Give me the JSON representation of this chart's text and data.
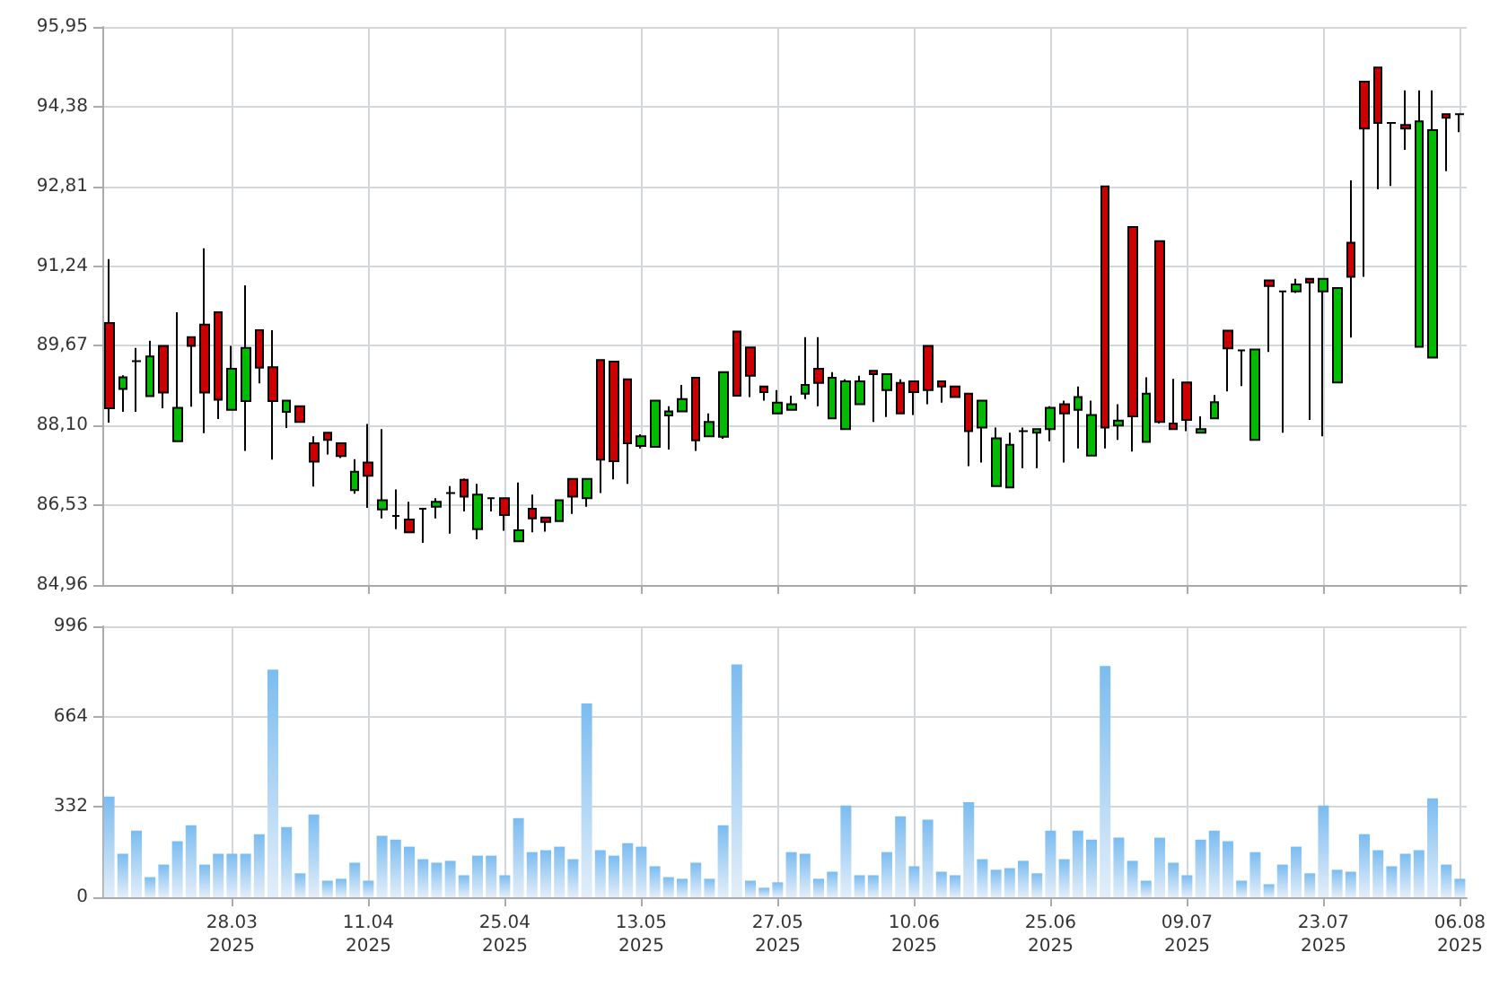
{
  "chart_data": [
    {
      "type": "candlestick",
      "categories": [
        null,
        null,
        null,
        null,
        null,
        null,
        null,
        null,
        null,
        null,
        null,
        null,
        null,
        null,
        null,
        null,
        null,
        null,
        null,
        null,
        null,
        null,
        null,
        null,
        null,
        null,
        null,
        null,
        null,
        null,
        null,
        null,
        null,
        null,
        null,
        null,
        null,
        null,
        null,
        null,
        null,
        null,
        null,
        null,
        null,
        null,
        null,
        null,
        null,
        null,
        null,
        null,
        null,
        null,
        null,
        null,
        null,
        null,
        null,
        null,
        null,
        null,
        null,
        null,
        null,
        null,
        null,
        null,
        null,
        null,
        null,
        null,
        null,
        null,
        null,
        null,
        null,
        null,
        null,
        null,
        null,
        null,
        null,
        null,
        null,
        null,
        null,
        null,
        null,
        null,
        null,
        null,
        null,
        null,
        null,
        null,
        null,
        null,
        null,
        null
      ],
      "ohlc": [
        [
          90.12,
          91.38,
          88.16,
          88.44
        ],
        [
          88.82,
          89.09,
          88.37,
          89.05
        ],
        [
          89.37,
          89.63,
          88.37,
          89.37
        ],
        [
          88.68,
          89.77,
          88.68,
          89.46
        ],
        [
          89.67,
          89.67,
          88.44,
          88.75
        ],
        [
          87.79,
          90.33,
          87.79,
          88.45
        ],
        [
          89.84,
          89.84,
          88.47,
          89.67
        ],
        [
          90.09,
          91.59,
          87.95,
          88.75
        ],
        [
          90.33,
          90.33,
          88.23,
          88.61
        ],
        [
          88.41,
          89.67,
          88.41,
          89.22
        ],
        [
          88.58,
          90.86,
          87.6,
          89.63
        ],
        [
          89.98,
          89.98,
          88.93,
          89.24
        ],
        [
          89.25,
          89.98,
          87.43,
          88.58
        ],
        [
          88.37,
          88.59,
          88.05,
          88.59
        ],
        [
          88.48,
          88.48,
          88.17,
          88.17
        ],
        [
          87.75,
          87.89,
          86.9,
          87.39
        ],
        [
          87.96,
          87.96,
          87.53,
          87.82
        ],
        [
          87.75,
          87.75,
          87.46,
          87.5
        ],
        [
          86.83,
          87.44,
          86.76,
          87.19
        ],
        [
          87.37,
          88.13,
          86.48,
          87.11
        ],
        [
          86.45,
          88.03,
          86.27,
          86.63
        ],
        [
          86.32,
          86.84,
          86.06,
          86.32
        ],
        [
          86.25,
          86.6,
          86.0,
          86.0
        ],
        [
          86.46,
          86.46,
          85.79,
          86.46
        ],
        [
          86.5,
          86.67,
          86.27,
          86.6
        ],
        [
          86.77,
          86.91,
          85.97,
          86.77
        ],
        [
          87.03,
          87.06,
          86.41,
          86.7
        ],
        [
          86.06,
          86.95,
          85.86,
          86.74
        ],
        [
          86.67,
          86.67,
          86.41,
          86.67
        ],
        [
          86.67,
          86.67,
          86.03,
          86.34
        ],
        [
          85.82,
          86.98,
          85.82,
          86.04
        ],
        [
          86.46,
          86.74,
          86.0,
          86.27
        ],
        [
          86.29,
          86.29,
          86.01,
          86.2
        ],
        [
          86.22,
          86.63,
          86.22,
          86.63
        ],
        [
          87.05,
          87.05,
          86.36,
          86.7
        ],
        [
          86.67,
          87.05,
          86.5,
          87.05
        ],
        [
          89.39,
          89.39,
          86.77,
          87.43
        ],
        [
          89.36,
          89.36,
          87.04,
          87.4
        ],
        [
          89.01,
          89.01,
          86.95,
          87.75
        ],
        [
          87.7,
          87.93,
          87.65,
          87.89
        ],
        [
          87.68,
          88.59,
          87.68,
          88.59
        ],
        [
          88.3,
          88.48,
          87.63,
          88.38
        ],
        [
          88.38,
          88.9,
          88.38,
          88.62
        ],
        [
          89.04,
          89.04,
          87.6,
          87.81
        ],
        [
          87.89,
          88.34,
          87.89,
          88.17
        ],
        [
          87.88,
          89.15,
          87.84,
          89.15
        ],
        [
          89.95,
          89.95,
          88.69,
          88.69
        ],
        [
          89.64,
          89.64,
          88.66,
          89.08
        ],
        [
          88.87,
          88.87,
          88.59,
          88.76
        ],
        [
          88.34,
          88.8,
          88.34,
          88.55
        ],
        [
          88.41,
          88.69,
          88.41,
          88.52
        ],
        [
          88.73,
          89.84,
          88.62,
          88.9
        ],
        [
          89.22,
          89.84,
          88.48,
          88.94
        ],
        [
          88.24,
          89.15,
          88.24,
          89.04
        ],
        [
          88.03,
          89.01,
          88.03,
          88.97
        ],
        [
          88.52,
          89.08,
          88.52,
          88.97
        ],
        [
          89.18,
          89.18,
          88.17,
          89.11
        ],
        [
          88.8,
          89.11,
          88.27,
          89.11
        ],
        [
          88.94,
          89.01,
          88.34,
          88.34
        ],
        [
          88.97,
          88.97,
          88.31,
          88.76
        ],
        [
          89.67,
          89.67,
          88.52,
          88.8
        ],
        [
          88.97,
          88.97,
          88.55,
          88.87
        ],
        [
          88.87,
          88.87,
          88.66,
          88.66
        ],
        [
          88.73,
          88.73,
          87.3,
          87.99
        ],
        [
          88.06,
          88.59,
          87.37,
          88.59
        ],
        [
          86.91,
          88.06,
          86.91,
          87.85
        ],
        [
          86.88,
          87.96,
          86.88,
          87.72
        ],
        [
          87.99,
          88.06,
          87.26,
          87.99
        ],
        [
          87.96,
          88.03,
          87.26,
          88.03
        ],
        [
          88.03,
          88.48,
          87.79,
          88.45
        ],
        [
          88.52,
          88.59,
          87.37,
          88.34
        ],
        [
          88.41,
          88.87,
          87.65,
          88.66
        ],
        [
          87.51,
          88.59,
          87.51,
          88.31
        ],
        [
          92.81,
          92.81,
          87.65,
          88.06
        ],
        [
          88.1,
          88.52,
          87.82,
          88.2
        ],
        [
          92.01,
          92.01,
          87.59,
          88.28
        ],
        [
          87.78,
          89.05,
          87.78,
          88.73
        ],
        [
          91.73,
          91.73,
          88.14,
          88.17
        ],
        [
          88.14,
          89.02,
          88.03,
          88.03
        ],
        [
          88.95,
          88.95,
          87.99,
          88.21
        ],
        [
          87.96,
          88.28,
          87.96,
          88.03
        ],
        [
          88.24,
          88.7,
          88.24,
          88.56
        ],
        [
          89.97,
          89.97,
          88.77,
          89.62
        ],
        [
          89.58,
          89.58,
          88.88,
          89.58
        ],
        [
          87.82,
          89.6,
          87.82,
          89.6
        ],
        [
          90.96,
          90.96,
          89.55,
          90.85
        ],
        [
          90.74,
          90.74,
          87.96,
          90.74
        ],
        [
          90.74,
          90.99,
          90.71,
          90.88
        ],
        [
          90.99,
          90.99,
          88.21,
          90.92
        ],
        [
          90.74,
          90.99,
          87.89,
          90.99
        ],
        [
          88.95,
          90.81,
          88.95,
          90.81
        ],
        [
          91.7,
          92.93,
          89.83,
          91.03
        ],
        [
          94.87,
          94.87,
          91.03,
          93.95
        ],
        [
          95.15,
          95.15,
          92.75,
          94.06
        ],
        [
          94.06,
          94.06,
          92.82,
          94.06
        ],
        [
          94.02,
          94.7,
          93.53,
          93.95
        ],
        [
          89.65,
          94.7,
          89.65,
          94.09
        ],
        [
          89.44,
          94.7,
          89.44,
          93.92
        ],
        [
          94.23,
          94.23,
          93.11,
          94.16
        ],
        [
          94.23,
          94.23,
          93.88,
          94.23
        ]
      ],
      "colors": [
        "#cc0000",
        "#00bb00",
        "#000000",
        "#00bb00",
        "#cc0000",
        "#00bb00",
        "#cc0000",
        "#cc0000",
        "#cc0000",
        "#00bb00",
        "#00bb00",
        "#cc0000",
        "#cc0000",
        "#00bb00",
        "#cc0000",
        "#cc0000",
        "#cc0000",
        "#cc0000",
        "#00bb00",
        "#cc0000",
        "#00bb00",
        "#000000",
        "#cc0000",
        "#000000",
        "#00bb00",
        "#000000",
        "#cc0000",
        "#00bb00",
        "#000000",
        "#cc0000",
        "#00bb00",
        "#cc0000",
        "#cc0000",
        "#00bb00",
        "#cc0000",
        "#00bb00",
        "#cc0000",
        "#cc0000",
        "#cc0000",
        "#00bb00",
        "#00bb00",
        "#00bb00",
        "#00bb00",
        "#cc0000",
        "#00bb00",
        "#00bb00",
        "#cc0000",
        "#cc0000",
        "#cc0000",
        "#00bb00",
        "#00bb00",
        "#00bb00",
        "#cc0000",
        "#00bb00",
        "#00bb00",
        "#00bb00",
        "#cc0000",
        "#00bb00",
        "#cc0000",
        "#cc0000",
        "#cc0000",
        "#cc0000",
        "#cc0000",
        "#cc0000",
        "#00bb00",
        "#00bb00",
        "#00bb00",
        "#000000",
        "#00bb00",
        "#00bb00",
        "#cc0000",
        "#00bb00",
        "#00bb00",
        "#cc0000",
        "#00bb00",
        "#cc0000",
        "#00bb00",
        "#cc0000",
        "#cc0000",
        "#cc0000",
        "#00bb00",
        "#00bb00",
        "#cc0000",
        "#000000",
        "#00bb00",
        "#cc0000",
        "#000000",
        "#00bb00",
        "#cc0000",
        "#00bb00",
        "#00bb00",
        "#cc0000",
        "#cc0000",
        "#cc0000",
        "#000000",
        "#cc0000",
        "#00bb00",
        "#00bb00",
        "#cc0000",
        "#000000"
      ],
      "ylim": [
        84.96,
        95.95
      ],
      "yticks": [
        {
          "value": 84.96,
          "label": "84,96"
        },
        {
          "value": 86.53,
          "label": "86,53"
        },
        {
          "value": 88.1,
          "label": "88,10"
        },
        {
          "value": 89.67,
          "label": "89,67"
        },
        {
          "value": 91.24,
          "label": "91,24"
        },
        {
          "value": 92.81,
          "label": "92,81"
        },
        {
          "value": 94.38,
          "label": "94,38"
        },
        {
          "value": 95.95,
          "label": "95,95"
        }
      ],
      "grid": true,
      "tick_labels": "y"
    },
    {
      "type": "bar",
      "categories": [
        null,
        null,
        null,
        null,
        null,
        null,
        null,
        null,
        null,
        "28.03\n2025",
        null,
        null,
        null,
        null,
        null,
        null,
        null,
        null,
        null,
        "11.04\n2025",
        null,
        null,
        null,
        null,
        null,
        null,
        null,
        null,
        null,
        "25.04\n2025",
        null,
        null,
        null,
        null,
        null,
        null,
        null,
        null,
        null,
        "13.05\n2025",
        null,
        null,
        null,
        null,
        null,
        null,
        null,
        null,
        null,
        "27.05\n2025",
        null,
        null,
        null,
        null,
        null,
        null,
        null,
        null,
        null,
        "10.06\n2025",
        null,
        null,
        null,
        null,
        null,
        null,
        null,
        null,
        null,
        "25.06\n2025",
        null,
        null,
        null,
        null,
        null,
        null,
        null,
        null,
        null,
        "09.07\n2025",
        null,
        null,
        null,
        null,
        null,
        null,
        null,
        null,
        null,
        "23.07\n2025",
        null,
        null,
        null,
        null,
        null,
        null,
        null,
        null,
        null,
        "06.08\n2025"
      ],
      "values": [
        370,
        160,
        245,
        74,
        120,
        206,
        265,
        120,
        160,
        160,
        160,
        232,
        837,
        258,
        88,
        304,
        61,
        68,
        127,
        61,
        226,
        212,
        186,
        140,
        127,
        134,
        81,
        153,
        153,
        81,
        291,
        166,
        173,
        186,
        140,
        712,
        173,
        153,
        199,
        186,
        114,
        74,
        68,
        127,
        68,
        265,
        856,
        61,
        35,
        55,
        166,
        160,
        68,
        94,
        337,
        81,
        81,
        166,
        298,
        114,
        285,
        94,
        81,
        350,
        140,
        101,
        107,
        134,
        88,
        245,
        140,
        245,
        212,
        850,
        219,
        134,
        61,
        219,
        127,
        81,
        212,
        245,
        206,
        61,
        166,
        48,
        120,
        186,
        88,
        337,
        101,
        94,
        232,
        173,
        114,
        160,
        173,
        364,
        120,
        68
      ],
      "color": "#7bbcf0",
      "ylim": [
        0,
        996
      ],
      "yticks": [
        0,
        332,
        664,
        996
      ],
      "grid": true
    }
  ]
}
